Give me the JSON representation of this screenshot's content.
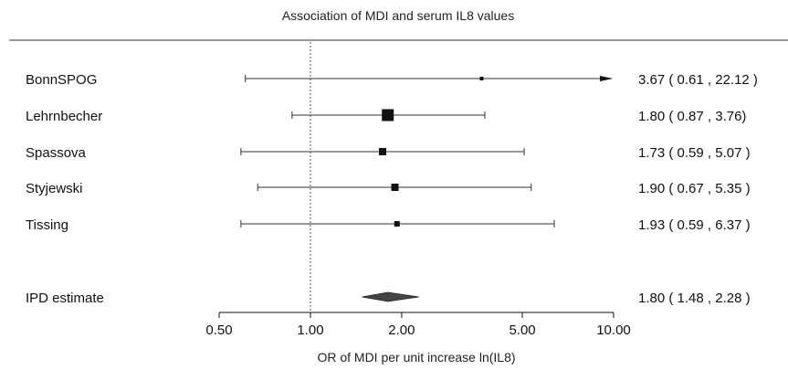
{
  "chart_data": {
    "type": "forest",
    "title": "Association of MDI and serum IL8 values",
    "xlabel": "OR of MDI per unit increase ln(IL8)",
    "x_scale": "log",
    "xlim": [
      0.5,
      10.0
    ],
    "x_ticks": [
      "0.50",
      "1.00",
      "2.00",
      "5.00",
      "10.00"
    ],
    "reference_line": 1.0,
    "studies": [
      {
        "name": "BonnSPOG",
        "estimate": 3.67,
        "lower": 0.61,
        "upper": 22.12,
        "label": "3.67 ( 0.61 , 22.12 )",
        "weight": "small",
        "truncated_upper": true
      },
      {
        "name": "Lehrnbecher",
        "estimate": 1.8,
        "lower": 0.87,
        "upper": 3.76,
        "label": "1.80 ( 0.87 , 3.76)",
        "weight": "large"
      },
      {
        "name": "Spassova",
        "estimate": 1.73,
        "lower": 0.59,
        "upper": 5.07,
        "label": "1.73 ( 0.59 , 5.07 )",
        "weight": "medium"
      },
      {
        "name": "Styjewski",
        "estimate": 1.9,
        "lower": 0.67,
        "upper": 5.35,
        "label": "1.90 ( 0.67 , 5.35 )",
        "weight": "medium"
      },
      {
        "name": "Tissing",
        "estimate": 1.93,
        "lower": 0.59,
        "upper": 6.37,
        "label": "1.93 ( 0.59 , 6.37 )",
        "weight": "medium-small"
      }
    ],
    "pooled": {
      "name": "IPD estimate",
      "estimate": 1.8,
      "lower": 1.48,
      "upper": 2.28,
      "label": "1.80 ( 1.48 , 2.28 )"
    }
  }
}
